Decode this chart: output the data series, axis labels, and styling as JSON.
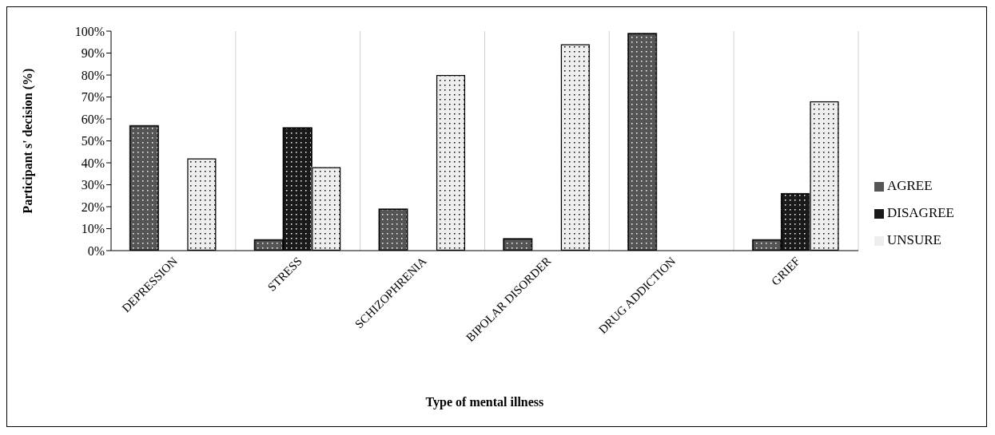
{
  "chart_data": {
    "type": "bar",
    "xlabel": "Type of mental illness",
    "ylabel": "Participant s' decision  (%)",
    "categories": [
      "DEPRESSION",
      "STRESS",
      "SCHIZOPHRENIA",
      "BIPOLAR DISORDER",
      "DRUG ADDICTION",
      "GRIEF"
    ],
    "series": [
      {
        "name": "AGREE",
        "color": "#555555",
        "values": [
          57,
          5,
          19,
          5.5,
          99,
          5
        ]
      },
      {
        "name": "DISAGREE",
        "color": "#1a1a1a",
        "values": [
          0,
          56,
          0,
          0,
          0,
          26
        ]
      },
      {
        "name": "UNSURE",
        "color": "#eeeeee",
        "values": [
          42,
          38,
          80,
          94,
          0,
          68
        ]
      }
    ],
    "ylim": [
      0,
      100
    ],
    "yticks": [
      {
        "value": 0,
        "label": "0%"
      },
      {
        "value": 10,
        "label": "10%"
      },
      {
        "value": 20,
        "label": "20%"
      },
      {
        "value": 30,
        "label": "30%"
      },
      {
        "value": 40,
        "label": "40%"
      },
      {
        "value": 50,
        "label": "50%"
      },
      {
        "value": 60,
        "label": "60%"
      },
      {
        "value": 70,
        "label": "70%"
      },
      {
        "value": 80,
        "label": "80%"
      },
      {
        "value": 90,
        "label": "90%"
      },
      {
        "value": 100,
        "label": "100%"
      }
    ],
    "grid": "x",
    "legend": "right"
  }
}
